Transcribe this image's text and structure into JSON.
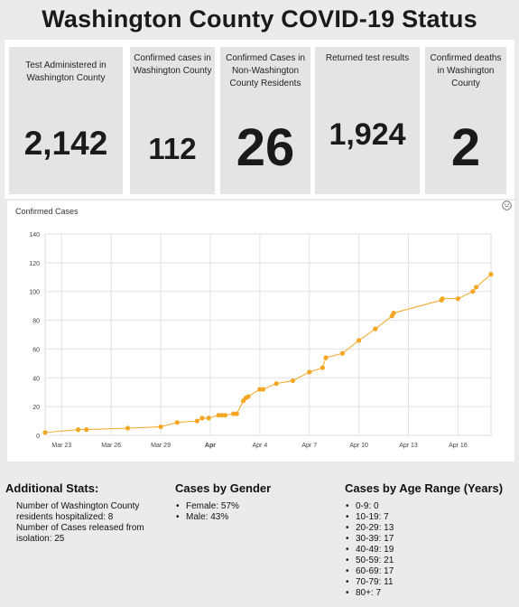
{
  "page": {
    "title": "Washington County COVID-19 Status"
  },
  "stats": [
    {
      "label": "Test Administered in Washington County",
      "value": "2,142"
    },
    {
      "label": "Confirmed cases in Washington County",
      "value": "112"
    },
    {
      "label": "Confirmed Cases in Non-Washington County Residents",
      "value": "26"
    },
    {
      "label": "Returned test results",
      "value": "1,924"
    },
    {
      "label": "Confirmed deaths in Washington County",
      "value": "2"
    }
  ],
  "chart_data": {
    "type": "line",
    "title": "Confirmed Cases",
    "xlabel": "",
    "ylabel": "",
    "ylim": [
      0,
      140
    ],
    "yticks": [
      0,
      20,
      40,
      60,
      80,
      100,
      120,
      140
    ],
    "xticks": [
      "Mar 23",
      "Mar 26",
      "Mar 29",
      "Apr",
      "Apr 4",
      "Apr 7",
      "Apr 10",
      "Apr 13",
      "Apr 16"
    ],
    "grid": true,
    "color": "#f5a623",
    "series": [
      {
        "x": [
          "2020-03-20",
          "2020-03-22",
          "2020-03-22.5",
          "2020-03-25",
          "2020-03-27",
          "2020-03-28",
          "2020-03-29.2",
          "2020-03-29.5",
          "2020-03-29.9",
          "2020-03-30.5",
          "2020-03-30.7",
          "2020-03-30.9",
          "2020-03-31.4",
          "2020-03-31.6",
          "2020-04-01",
          "2020-04-01.15",
          "2020-04-01.3",
          "2020-04-02",
          "2020-04-02.2",
          "2020-04-03",
          "2020-04-04",
          "2020-04-05",
          "2020-04-05.8",
          "2020-04-06",
          "2020-04-07",
          "2020-04-08",
          "2020-04-09",
          "2020-04-10",
          "2020-04-10.1",
          "2020-04-13",
          "2020-04-13.05",
          "2020-04-14",
          "2020-04-14.9",
          "2020-04-15.1",
          "2020-04-16"
        ],
        "y": [
          2,
          4,
          4,
          5,
          6,
          9,
          10,
          12,
          12,
          14,
          14,
          14,
          15,
          15,
          24,
          26,
          27,
          32,
          32,
          36,
          38,
          44,
          47,
          54,
          57,
          66,
          74,
          83,
          85,
          94,
          95,
          95,
          100,
          103,
          112
        ]
      }
    ]
  },
  "additional": {
    "heading": "Additional Stats:",
    "items": [
      "Number of Washington County residents hospitalized: 8",
      "Number of Cases released from isolation: 25"
    ]
  },
  "gender": {
    "heading": "Cases by Gender",
    "items": [
      "Female: 57%",
      "Male: 43%"
    ]
  },
  "age": {
    "heading": "Cases by Age Range (Years)",
    "items": [
      "0-9: 0",
      "10-19: 7",
      "20-29: 13",
      "30-39: 17",
      "40-49: 19",
      "50-59: 21",
      "60-69: 17",
      "70-79: 11",
      "80+: 7"
    ]
  }
}
